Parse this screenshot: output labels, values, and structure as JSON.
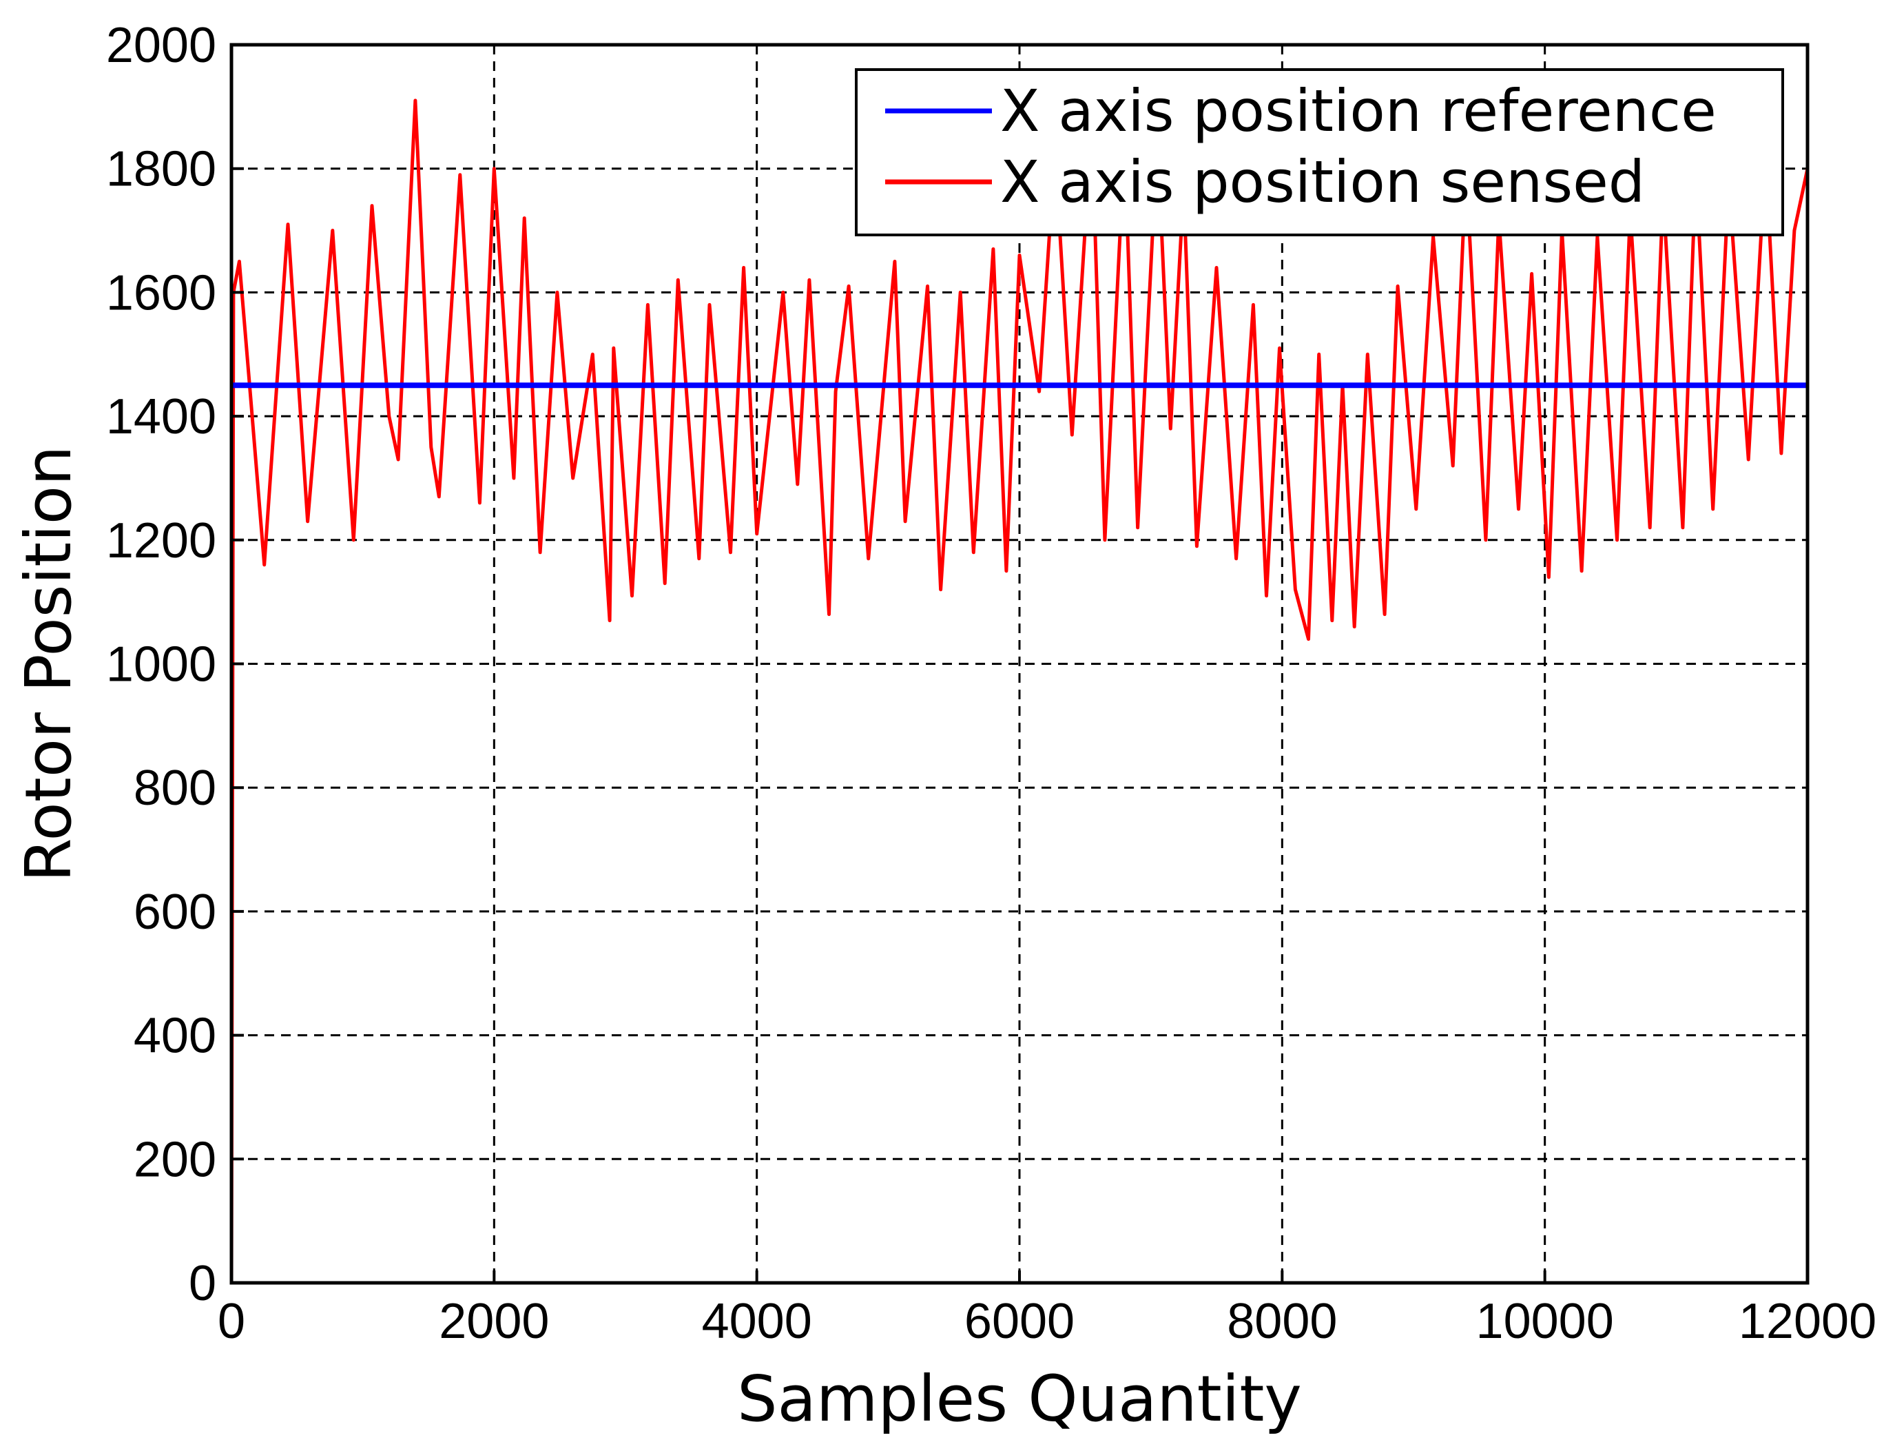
{
  "chart_data": {
    "type": "line",
    "title": "",
    "xlabel": "Samples Quantity",
    "ylabel": "Rotor Position",
    "xlim": [
      0,
      12000
    ],
    "ylim": [
      0,
      2000
    ],
    "xticks": [
      0,
      2000,
      4000,
      6000,
      8000,
      10000,
      12000
    ],
    "xtick_labels": [
      "0",
      "2000",
      "4000",
      "6000",
      "8000",
      "10000",
      "12000"
    ],
    "yticks": [
      0,
      200,
      400,
      600,
      800,
      1000,
      1200,
      1400,
      1600,
      1800,
      2000
    ],
    "ytick_labels": [
      "0",
      "200",
      "400",
      "600",
      "800",
      "1000",
      "1200",
      "1400",
      "1600",
      "1800",
      "2000"
    ],
    "grid": true,
    "legend_position": "top-right",
    "series": [
      {
        "name": "X axis position reference",
        "color": "#0000ff",
        "x": [
          0,
          12000
        ],
        "y": [
          1450,
          1450
        ]
      },
      {
        "name": "X axis position sensed",
        "color": "#ff0000",
        "x": [
          0,
          15,
          60,
          150,
          250,
          430,
          580,
          770,
          930,
          1070,
          1200,
          1270,
          1400,
          1520,
          1580,
          1740,
          1890,
          2000,
          2150,
          2230,
          2350,
          2480,
          2600,
          2750,
          2880,
          2910,
          3050,
          3170,
          3300,
          3400,
          3560,
          3640,
          3800,
          3900,
          4000,
          4200,
          4310,
          4400,
          4550,
          4600,
          4700,
          4850,
          5050,
          5130,
          5300,
          5400,
          5550,
          5650,
          5800,
          5900,
          6000,
          6150,
          6270,
          6400,
          6550,
          6650,
          6800,
          6900,
          7050,
          7150,
          7250,
          7350,
          7500,
          7650,
          7780,
          7880,
          7980,
          8100,
          8200,
          8280,
          8380,
          8460,
          8550,
          8650,
          8780,
          8880,
          9020,
          9150,
          9300,
          9400,
          9550,
          9650,
          9800,
          9900,
          10030,
          10130,
          10280,
          10400,
          10550,
          10650,
          10800,
          10900,
          11050,
          11150,
          11280,
          11400,
          11550,
          11680,
          11800,
          11900,
          12000
        ],
        "y": [
          0,
          1600,
          1650,
          1420,
          1160,
          1710,
          1230,
          1700,
          1200,
          1740,
          1400,
          1330,
          1910,
          1350,
          1270,
          1790,
          1260,
          1800,
          1300,
          1720,
          1180,
          1600,
          1300,
          1500,
          1070,
          1510,
          1110,
          1580,
          1130,
          1620,
          1170,
          1580,
          1180,
          1640,
          1210,
          1600,
          1290,
          1620,
          1080,
          1440,
          1610,
          1170,
          1650,
          1230,
          1610,
          1120,
          1600,
          1180,
          1670,
          1150,
          1660,
          1440,
          1830,
          1370,
          1870,
          1200,
          1840,
          1220,
          1850,
          1380,
          1770,
          1190,
          1640,
          1170,
          1580,
          1110,
          1510,
          1120,
          1040,
          1500,
          1070,
          1450,
          1060,
          1500,
          1080,
          1610,
          1250,
          1690,
          1320,
          1800,
          1200,
          1720,
          1250,
          1630,
          1140,
          1700,
          1150,
          1690,
          1200,
          1730,
          1220,
          1760,
          1220,
          1800,
          1250,
          1780,
          1330,
          1820,
          1340,
          1700,
          1800
        ]
      }
    ]
  }
}
